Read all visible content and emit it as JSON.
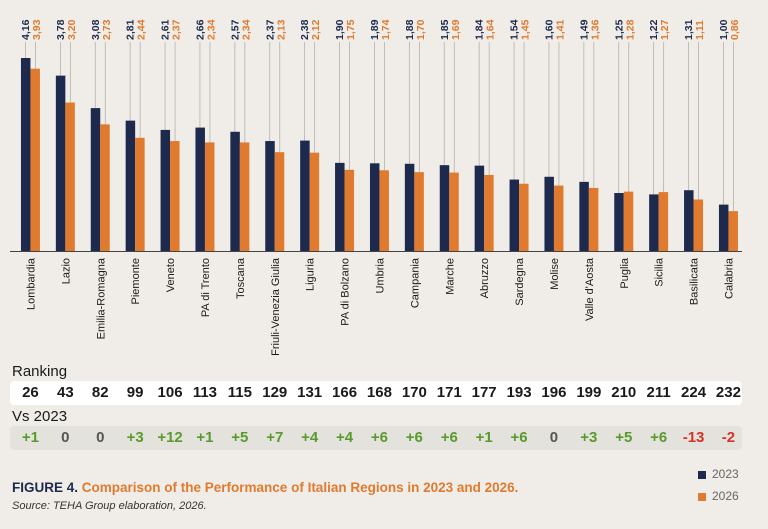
{
  "chart_data": {
    "type": "bar",
    "categories": [
      "Lombardia",
      "Lazio",
      "Emilia-Romagna",
      "Piemonte",
      "Veneto",
      "PA di Trento",
      "Toscana",
      "Friuli-Venezia Giulia",
      "Liguria",
      "PA di Bolzano",
      "Umbria",
      "Campania",
      "Marche",
      "Abruzzo",
      "Sardegna",
      "Molise",
      "Valle d'Aosta",
      "Puglia",
      "Sicilia",
      "Basilicata",
      "Calabria"
    ],
    "series": [
      {
        "name": "2023",
        "color": "#1d2a4d",
        "values": [
          4.16,
          3.78,
          3.08,
          2.81,
          2.61,
          2.66,
          2.57,
          2.37,
          2.38,
          1.9,
          1.89,
          1.88,
          1.85,
          1.84,
          1.54,
          1.6,
          1.49,
          1.25,
          1.22,
          1.31,
          1.0
        ],
        "labels": [
          "4,16",
          "3,78",
          "3,08",
          "2,81",
          "2,61",
          "2,66",
          "2,57",
          "2,37",
          "2,38",
          "1,90",
          "1,89",
          "1,88",
          "1,85",
          "1,84",
          "1,54",
          "1,60",
          "1,49",
          "1,25",
          "1,22",
          "1,31",
          "1,00"
        ]
      },
      {
        "name": "2026",
        "color": "#e07a2e",
        "values": [
          3.93,
          3.2,
          2.73,
          2.44,
          2.37,
          2.34,
          2.34,
          2.13,
          2.12,
          1.75,
          1.74,
          1.7,
          1.69,
          1.64,
          1.45,
          1.41,
          1.36,
          1.28,
          1.27,
          1.11,
          0.86
        ],
        "labels": [
          "3,93",
          "3,20",
          "2,73",
          "2,44",
          "2,37",
          "2,34",
          "2,34",
          "2,13",
          "2,12",
          "1,75",
          "1,74",
          "1,70",
          "1,69",
          "1,64",
          "1,45",
          "1,41",
          "1,36",
          "1,28",
          "1,27",
          "1,11",
          "0,86"
        ]
      }
    ],
    "ylim": [
      0,
      4.16
    ],
    "grid": false,
    "legend": "bottom-right"
  },
  "ranking": {
    "label": "Ranking",
    "values": [
      "26",
      "43",
      "82",
      "99",
      "106",
      "113",
      "115",
      "129",
      "131",
      "166",
      "168",
      "170",
      "171",
      "177",
      "193",
      "196",
      "199",
      "210",
      "211",
      "224",
      "232"
    ]
  },
  "vs2023": {
    "label": "Vs 2023",
    "values": [
      "+1",
      "0",
      "0",
      "+3",
      "+12",
      "+1",
      "+5",
      "+7",
      "+4",
      "+4",
      "+6",
      "+6",
      "+6",
      "+1",
      "+6",
      "0",
      "+3",
      "+5",
      "+6",
      "-13",
      "-2"
    ],
    "colors": {
      "positive": "#5a9a2c",
      "zero": "#555555",
      "negative": "#d4332a"
    }
  },
  "caption": {
    "figure_number": "FIGURE 4.",
    "text": "Comparison of the Performance of Italian Regions in 2023 and 2026.",
    "source": "Source: TEHA Group elaboration, 2026."
  },
  "legend": {
    "items": [
      "2023",
      "2026"
    ]
  }
}
